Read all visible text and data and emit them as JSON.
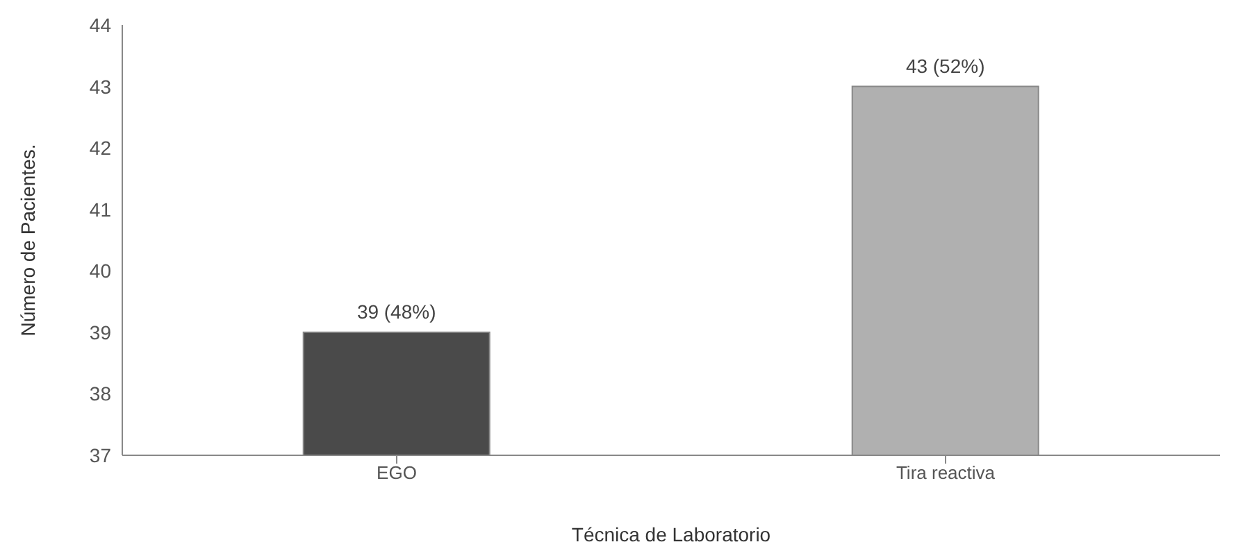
{
  "chart_data": {
    "type": "bar",
    "xlabel": "Técnica de Laboratorio",
    "ylabel": "Número de Pacientes.",
    "categories": [
      "EGO",
      "Tira reactiva"
    ],
    "values": [
      39,
      43
    ],
    "colors": [
      "#4a4a4a",
      "#b0b0b0"
    ],
    "value_labels": [
      "39 (48%)",
      "43 (52%)"
    ],
    "ylim": [
      37,
      44
    ],
    "yticks": [
      37,
      38,
      39,
      40,
      41,
      42,
      43,
      44
    ],
    "grid": false
  }
}
